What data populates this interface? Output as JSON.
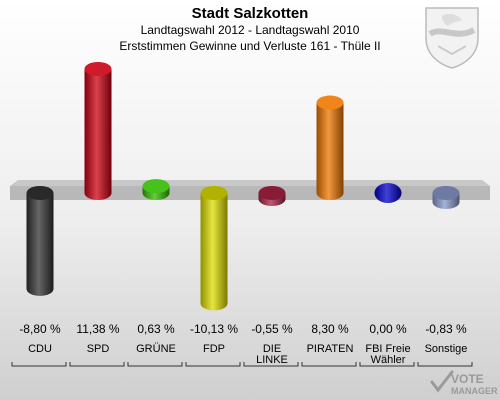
{
  "header": {
    "title": "Stadt Salzkotten",
    "subtitle": "Landtagswahl 2012 - Landtagswahl 2010",
    "caption": "Erststimmen Gewinne und Verluste 161 - Thüle II"
  },
  "logo": {
    "line1": "VOTE",
    "line2": "MANAGER"
  },
  "chart_data": {
    "type": "bar",
    "title": "Erststimmen Gewinne und Verluste 161 - Thüle II",
    "categories": [
      "CDU",
      "SPD",
      "GRÜNE",
      "FDP",
      "DIE LINKE",
      "PIRATEN",
      "FBI Freie Wähler",
      "Sonstige"
    ],
    "category_lines": [
      [
        "CDU"
      ],
      [
        "SPD"
      ],
      [
        "GRÜNE"
      ],
      [
        "FDP"
      ],
      [
        "DIE",
        "LINKE"
      ],
      [
        "PIRATEN"
      ],
      [
        "FBI Freie",
        "Wähler"
      ],
      [
        "Sonstige"
      ]
    ],
    "values": [
      -8.8,
      11.38,
      0.63,
      -10.13,
      -0.55,
      8.3,
      0.0,
      -0.83
    ],
    "value_labels": [
      "-8,80 %",
      "11,38 %",
      "0,63 %",
      "-10,13 %",
      "-0,55 %",
      "8,30 %",
      "0,00 %",
      "-0,83 %"
    ],
    "colors": [
      "#333333",
      "#cc0011",
      "#33bb00",
      "#dddd00",
      "#aa2244",
      "#ee7700",
      "#0000cc",
      "#8899cc"
    ],
    "ylim": [
      -12,
      12
    ],
    "grid": false,
    "legend": "none"
  }
}
